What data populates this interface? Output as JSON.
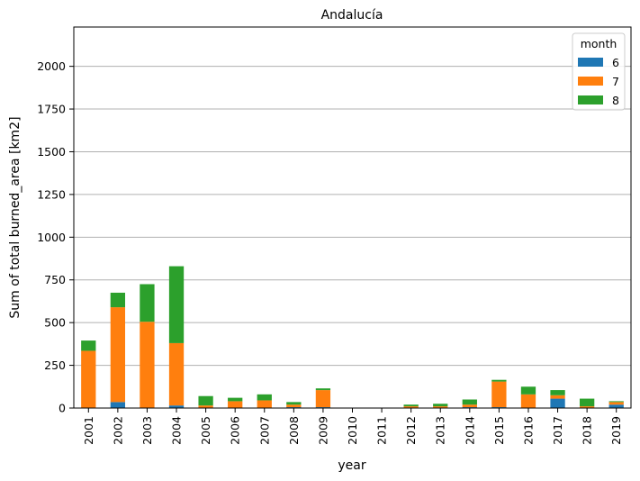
{
  "chart_data": {
    "type": "bar",
    "stacked": true,
    "title": "Andalucía",
    "xlabel": "year",
    "ylabel": "Sum of total burned_area [km2]",
    "ylim": [
      0,
      2230
    ],
    "yticks": [
      0,
      250,
      500,
      750,
      1000,
      1250,
      1500,
      1750,
      2000
    ],
    "grid": "y",
    "legend_position": "top-right",
    "legend_title": "month",
    "categories": [
      "2001",
      "2002",
      "2003",
      "2004",
      "2005",
      "2006",
      "2007",
      "2008",
      "2009",
      "2010",
      "2011",
      "2012",
      "2013",
      "2014",
      "2015",
      "2016",
      "2017",
      "2018",
      "2019"
    ],
    "series": [
      {
        "name": "6",
        "color": "#1f77b4",
        "values": [
          0,
          35,
          0,
          15,
          0,
          0,
          0,
          5,
          5,
          0,
          0,
          0,
          0,
          5,
          5,
          0,
          55,
          0,
          20
        ]
      },
      {
        "name": "7",
        "color": "#ff7f0e",
        "values": [
          335,
          555,
          505,
          365,
          15,
          40,
          45,
          15,
          100,
          0,
          0,
          10,
          10,
          15,
          150,
          80,
          20,
          10,
          15
        ]
      },
      {
        "name": "8",
        "color": "#2ca02c",
        "values": [
          60,
          85,
          220,
          450,
          55,
          20,
          35,
          15,
          10,
          0,
          0,
          10,
          15,
          30,
          10,
          45,
          30,
          45,
          5
        ]
      }
    ]
  }
}
